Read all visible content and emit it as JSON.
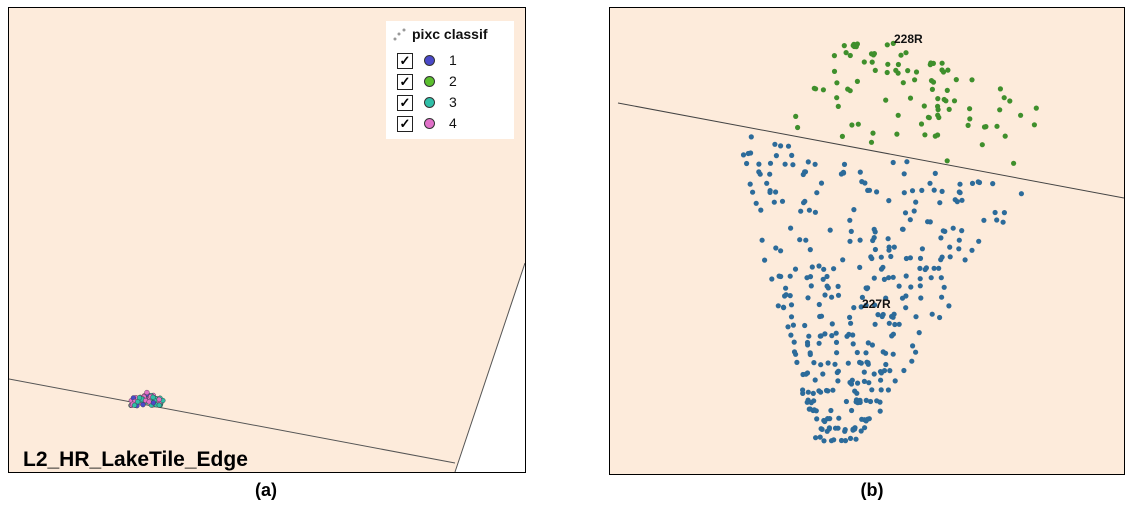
{
  "panel_a": {
    "caption": "(a)",
    "tile_name": "L2_HR_LakeTile_Edge",
    "legend": {
      "title": "pixc classif",
      "items": [
        {
          "label": "1",
          "color": "#4a49c9",
          "checked": true
        },
        {
          "label": "2",
          "color": "#5bbf2e",
          "checked": true
        },
        {
          "label": "3",
          "color": "#2fbfa8",
          "checked": true
        },
        {
          "label": "4",
          "color": "#e070c8",
          "checked": true
        }
      ],
      "checkmark": "✓"
    },
    "colors": {
      "tile_fill": "#fdebdb",
      "edge_line": "#555555"
    }
  },
  "panel_b": {
    "caption": "(b)",
    "labels": {
      "upper_tile": "228R",
      "lower_tile": "227R"
    },
    "colors": {
      "tile_fill": "#fdebdb",
      "class2_points": "#3f8f2c",
      "class1_points": "#2c6b9a",
      "boundary_line": "#444444"
    }
  }
}
